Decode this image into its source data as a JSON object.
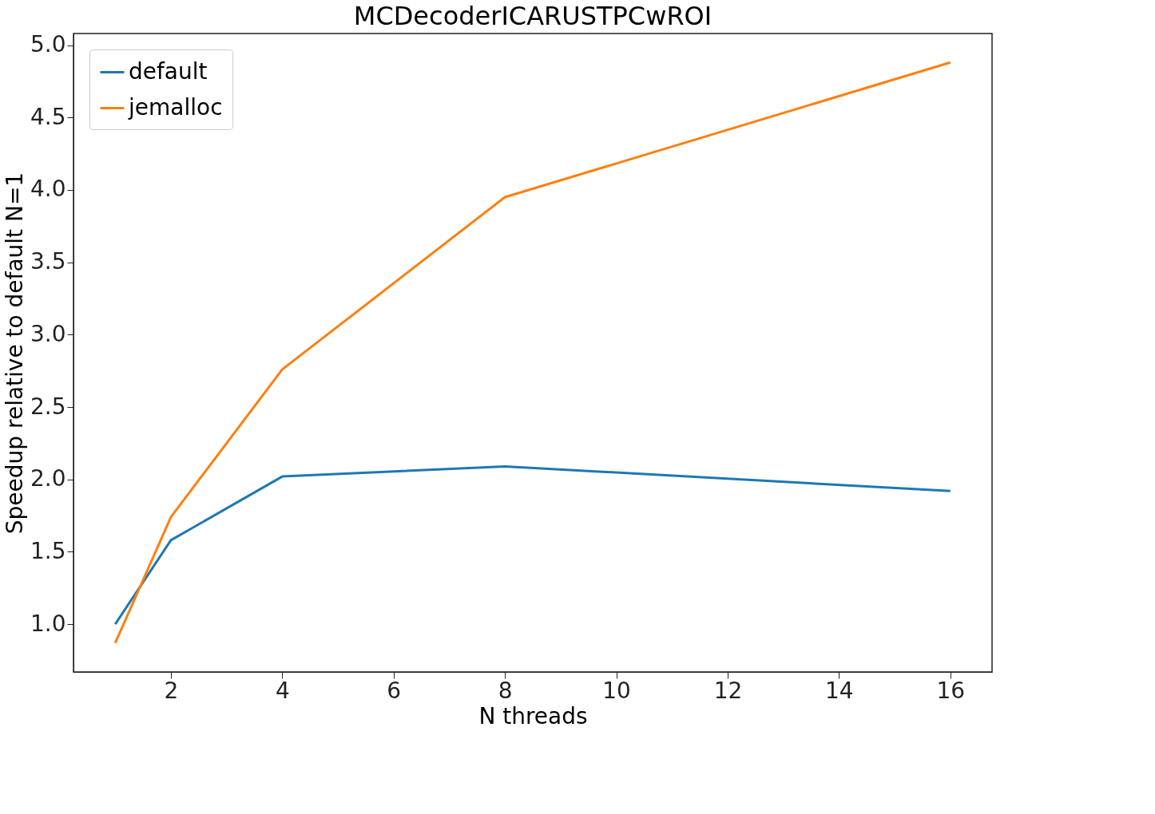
{
  "chart_data": {
    "type": "line",
    "title": "MCDecoderICARUSTPCwROI",
    "xlabel": "N threads",
    "ylabel": "Speedup relative to default N=1",
    "x": [
      1,
      2,
      4,
      8,
      16
    ],
    "series": [
      {
        "name": "default",
        "color": "#1f77b4",
        "values": [
          1.0,
          1.58,
          2.02,
          2.09,
          1.92
        ]
      },
      {
        "name": "jemalloc",
        "color": "#ff7f0e",
        "values": [
          0.87,
          1.74,
          2.76,
          3.95,
          4.88
        ]
      }
    ],
    "xlim": [
      0.25,
      16.75
    ],
    "xticks": [
      2,
      4,
      6,
      8,
      10,
      12,
      14,
      16
    ],
    "ylim": [
      0.67,
      5.08
    ],
    "yticks": [
      {
        "value": 1,
        "label": "1.0"
      },
      {
        "value": 1.5,
        "label": "1.5"
      },
      {
        "value": 2,
        "label": "2.0"
      },
      {
        "value": 2.5,
        "label": "2.5"
      },
      {
        "value": 3,
        "label": "3.0"
      },
      {
        "value": 3.5,
        "label": "3.5"
      },
      {
        "value": 4,
        "label": "4.0"
      },
      {
        "value": 4.5,
        "label": "4.5"
      },
      {
        "value": 5,
        "label": "5.0"
      }
    ],
    "legend": "top left",
    "grid": false,
    "marker": "none",
    "line_style": "solid"
  }
}
